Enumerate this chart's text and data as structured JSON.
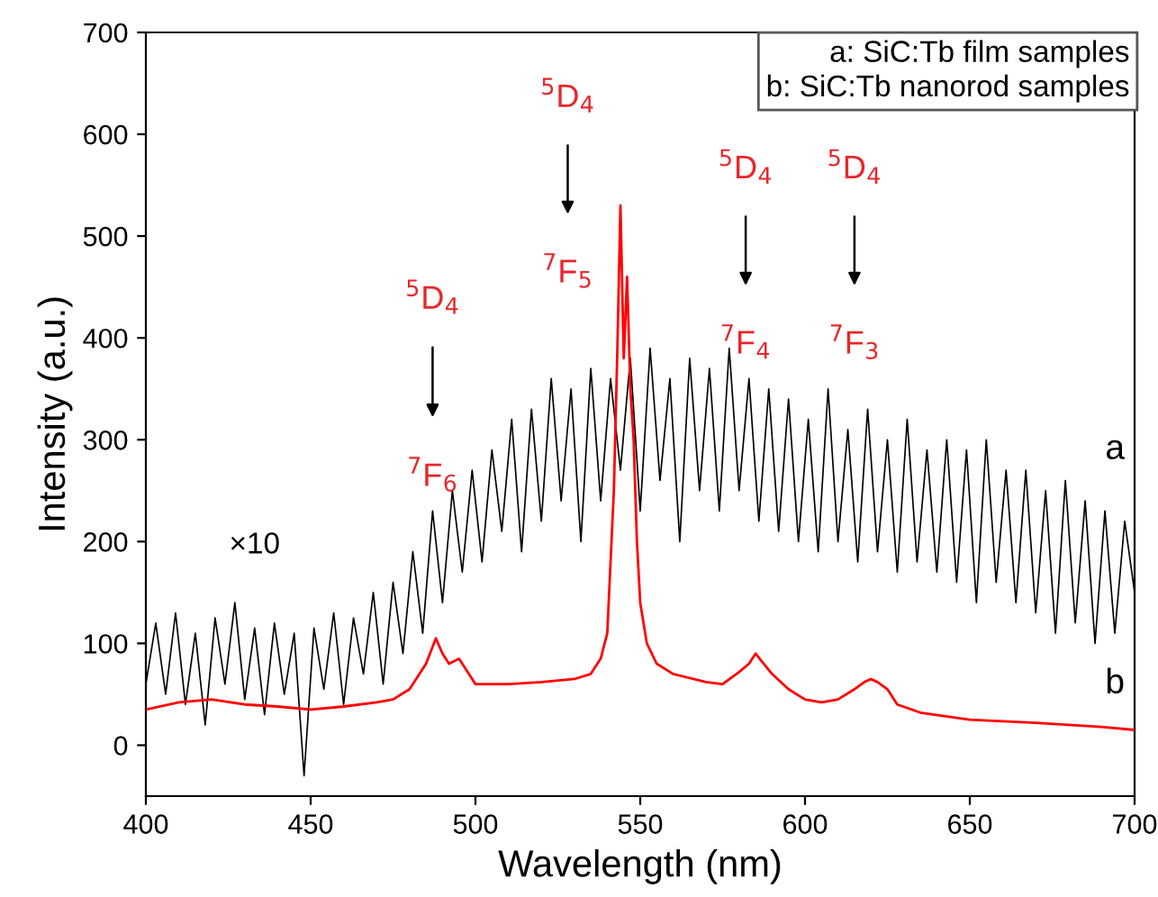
{
  "chart_data": {
    "type": "line",
    "xlabel": "Wavelength (nm)",
    "ylabel": "Intensity (a.u.)",
    "xlim": [
      400,
      700
    ],
    "xticks": [
      400,
      450,
      500,
      550,
      600,
      650,
      700
    ],
    "ylim": [
      -50,
      700
    ],
    "yticks": [
      0,
      100,
      200,
      300,
      400,
      500,
      600,
      700
    ],
    "grid": false,
    "marker": "none",
    "line_style": "solid",
    "series": [
      {
        "name": "a",
        "color": "#000000",
        "x": [
          400,
          403,
          406,
          409,
          412,
          415,
          418,
          421,
          424,
          427,
          430,
          433,
          436,
          439,
          442,
          445,
          448,
          451,
          454,
          457,
          460,
          463,
          466,
          469,
          472,
          475,
          478,
          481,
          484,
          487,
          490,
          493,
          496,
          499,
          502,
          505,
          508,
          511,
          514,
          517,
          520,
          523,
          526,
          529,
          532,
          535,
          538,
          541,
          544,
          547,
          550,
          553,
          556,
          559,
          562,
          565,
          568,
          571,
          574,
          577,
          580,
          583,
          586,
          589,
          592,
          595,
          598,
          601,
          604,
          607,
          610,
          613,
          616,
          619,
          622,
          625,
          628,
          631,
          634,
          637,
          640,
          643,
          646,
          649,
          652,
          655,
          658,
          661,
          664,
          667,
          670,
          673,
          676,
          679,
          682,
          685,
          688,
          691,
          694,
          697,
          700
        ],
        "values": [
          60,
          120,
          50,
          130,
          40,
          110,
          20,
          125,
          60,
          140,
          45,
          115,
          30,
          120,
          50,
          110,
          -30,
          115,
          55,
          130,
          40,
          125,
          70,
          150,
          60,
          160,
          90,
          190,
          110,
          230,
          140,
          250,
          170,
          270,
          180,
          290,
          210,
          320,
          190,
          330,
          220,
          360,
          240,
          350,
          200,
          370,
          240,
          360,
          270,
          380,
          230,
          390,
          260,
          360,
          200,
          380,
          250,
          370,
          230,
          390,
          250,
          360,
          220,
          350,
          210,
          340,
          200,
          320,
          190,
          350,
          200,
          310,
          180,
          330,
          190,
          300,
          170,
          320,
          180,
          290,
          170,
          300,
          160,
          290,
          140,
          300,
          160,
          270,
          140,
          270,
          130,
          250,
          110,
          260,
          120,
          240,
          100,
          230,
          110,
          220,
          150
        ]
      },
      {
        "name": "b",
        "color": "#ff0000",
        "x": [
          400,
          410,
          420,
          430,
          440,
          450,
          460,
          470,
          475,
          480,
          485,
          488,
          490,
          492,
          495,
          498,
          500,
          510,
          520,
          530,
          535,
          538,
          540,
          542,
          543,
          544,
          545,
          546,
          547,
          548,
          549,
          550,
          552,
          555,
          560,
          570,
          575,
          580,
          583,
          585,
          587,
          590,
          595,
          600,
          605,
          610,
          615,
          618,
          620,
          622,
          625,
          628,
          635,
          650,
          670,
          690,
          700
        ],
        "values": [
          35,
          42,
          45,
          40,
          38,
          35,
          38,
          42,
          45,
          55,
          80,
          105,
          90,
          80,
          85,
          70,
          60,
          60,
          62,
          65,
          70,
          85,
          110,
          250,
          380,
          530,
          380,
          460,
          350,
          300,
          200,
          140,
          100,
          80,
          70,
          62,
          60,
          72,
          80,
          90,
          82,
          70,
          55,
          45,
          42,
          45,
          55,
          62,
          65,
          62,
          55,
          40,
          32,
          25,
          22,
          18,
          15
        ]
      }
    ],
    "annotations": [
      "a: SiC:Tb film samples",
      "b: SiC:Tb nanorod samples",
      "×10",
      "$^{5}$D$_{4}$",
      "$^{7}$F$_{6}$",
      "$^{5}$D$_{4}$",
      "$^{7}$F$_{5}$",
      "$^{5}$D$_{4}$",
      "$^{7}$F$_{4}$",
      "$^{5}$D$_{4}$",
      "$^{7}$F$_{3}$"
    ]
  }
}
